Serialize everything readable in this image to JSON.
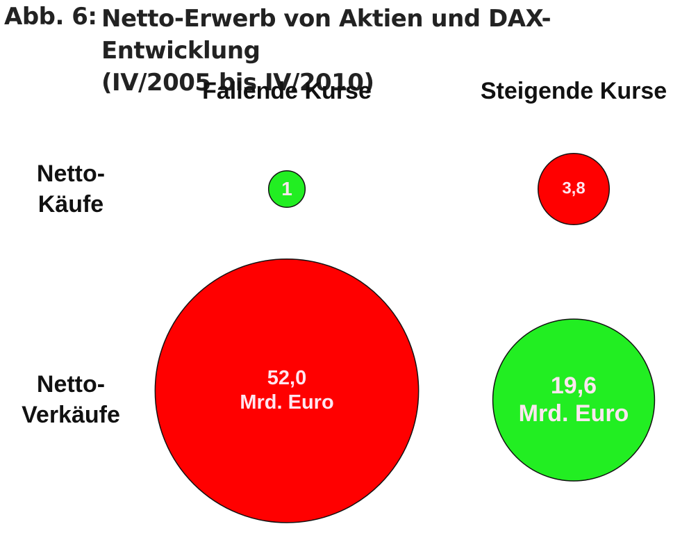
{
  "chart_data": {
    "type": "bubble",
    "figure_label": "Abb. 6:",
    "title": "Netto-Erwerb von Aktien und DAX-Entwicklung\n(IV/2005 bis IV/2010)",
    "categories": [
      "Fallende Kurse",
      "Steigende Kurse"
    ],
    "series": [
      {
        "name": "Netto-\nKäufe",
        "values": [
          1,
          3.8
        ],
        "value_labels": [
          "1",
          "3,8"
        ],
        "colors": [
          "#22ee22",
          "#ff0000"
        ]
      },
      {
        "name": "Netto-\nVerkäufe",
        "values": [
          52.0,
          19.6
        ],
        "value_labels": [
          "52,0\nMrd. Euro",
          "19,6\nMrd. Euro"
        ],
        "colors": [
          "#ff0000",
          "#22ee22"
        ]
      }
    ]
  }
}
